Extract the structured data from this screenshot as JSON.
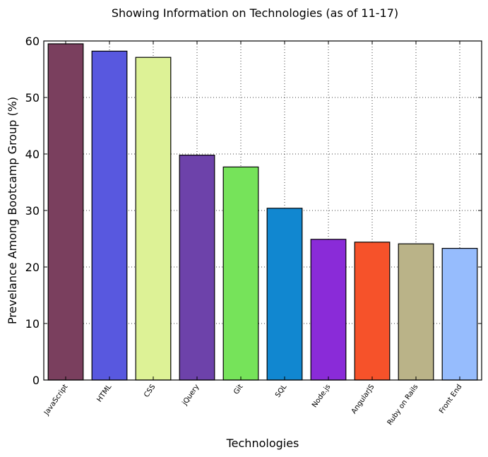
{
  "chart_data": {
    "type": "bar",
    "title": "Showing Information on Technologies (as of 11-17)",
    "xlabel": "Technologies",
    "ylabel": "Prevelance Among Bootcamp Group (%)",
    "ylim": [
      0,
      60
    ],
    "yticks": [
      0,
      10,
      20,
      30,
      40,
      50,
      60
    ],
    "grid": true,
    "categories": [
      "JavaScript",
      "HTML",
      "CSS",
      "jQuery",
      "Git",
      "SQL",
      "Node.js",
      "AngularJS",
      "Ruby on Rails",
      "Front End"
    ],
    "values": [
      59.5,
      58.2,
      57.1,
      39.8,
      37.7,
      30.4,
      24.9,
      24.4,
      24.1,
      23.3
    ],
    "colors": [
      "#7a3f5e",
      "#5858df",
      "#ddf296",
      "#6d42aa",
      "#76e35a",
      "#1187d0",
      "#8a2bd8",
      "#f6522a",
      "#bab388",
      "#96bcfd"
    ]
  }
}
